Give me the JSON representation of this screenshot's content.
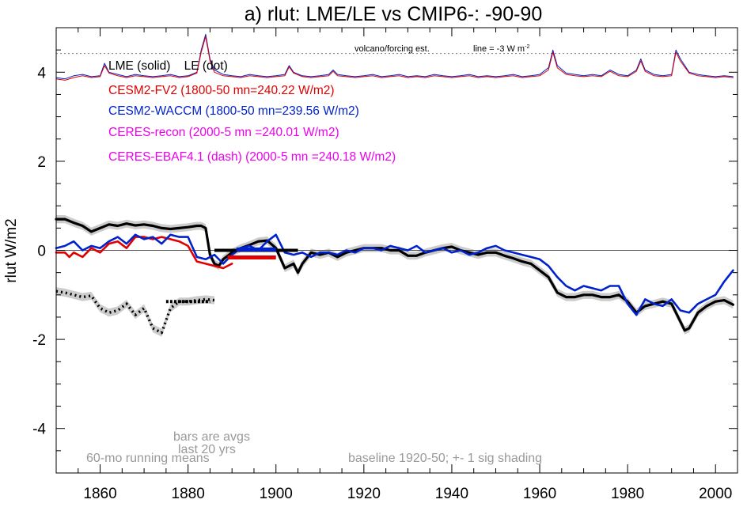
{
  "chart_data": {
    "type": "line",
    "title": "a) rlut: LME/LE vs CMIP6-: -90-90",
    "ylabel": "rlut W/m2",
    "xlabel": "",
    "xlim": [
      1850,
      2005
    ],
    "ylim": [
      -5,
      5
    ],
    "xticks": [
      1860,
      1880,
      1900,
      1920,
      1940,
      1960,
      1980,
      2000
    ],
    "yticks": [
      -4,
      -2,
      0,
      2,
      4
    ],
    "grid": false,
    "zero_line": 0,
    "forcing_reference": 4.42,
    "colors": {
      "lme": "#000000",
      "fv2": "#e00000",
      "waccm": "#0022cc",
      "ceres": "#ee00ee",
      "shading": "#cccccc",
      "note": "#999999"
    },
    "legend": [
      {
        "text": "LME (solid)    LE (dot)",
        "color": "#000000"
      },
      {
        "text": "CESM2-FV2 (1800-50 mn=240.22 W/m2)",
        "color": "#e00000"
      },
      {
        "text": "CESM2-WACCM (1800-50 mn=239.56 W/m2)",
        "color": "#0022cc"
      },
      {
        "text": "CERES-recon (2000-5 mn =240.01 W/m2)",
        "color": "#ee00ee"
      },
      {
        "text": "CERES-EBAF4.1 (dash) (2000-5 mn =240.18 W/m2)",
        "color": "#ee00ee"
      }
    ],
    "annotations": {
      "volcano": "volcano/forcing est.",
      "line_note": "line = -3 W m",
      "line_note_sup": "-2",
      "bars_note_1": "bars are avgs",
      "bars_note_2": "last 20 yrs",
      "running_means": "60-mo running means",
      "baseline": "baseline 1920-50; +- 1 sig shading"
    },
    "series": [
      {
        "id": "lme",
        "style": "solid",
        "width": 3.2,
        "sigma": 0.09,
        "x": [
          1850,
          1852,
          1854,
          1856,
          1858,
          1860,
          1862,
          1864,
          1866,
          1868,
          1870,
          1872,
          1874,
          1876,
          1878,
          1880,
          1882,
          1883,
          1884,
          1885,
          1886,
          1887,
          1888,
          1890,
          1892,
          1894,
          1896,
          1898,
          1900,
          1902,
          1904,
          1905,
          1906,
          1908,
          1910,
          1912,
          1914,
          1916,
          1918,
          1920,
          1922,
          1924,
          1926,
          1928,
          1930,
          1932,
          1934,
          1936,
          1938,
          1940,
          1942,
          1944,
          1946,
          1948,
          1950,
          1952,
          1954,
          1956,
          1958,
          1960,
          1962,
          1964,
          1966,
          1968,
          1970,
          1972,
          1974,
          1976,
          1978,
          1980,
          1982,
          1984,
          1986,
          1988,
          1990,
          1992,
          1993,
          1994,
          1996,
          1998,
          2000,
          2002,
          2004
        ],
        "y": [
          0.7,
          0.7,
          0.62,
          0.55,
          0.42,
          0.5,
          0.58,
          0.55,
          0.6,
          0.56,
          0.58,
          0.55,
          0.5,
          0.48,
          0.5,
          0.52,
          0.55,
          0.55,
          0.5,
          -0.1,
          -0.3,
          -0.35,
          -0.2,
          -0.05,
          0.05,
          0.12,
          0.2,
          0.22,
          0.05,
          -0.4,
          -0.3,
          -0.5,
          -0.3,
          -0.05,
          -0.1,
          -0.05,
          -0.15,
          -0.05,
          0.0,
          0.05,
          0.05,
          0.05,
          0.0,
          0.0,
          -0.12,
          -0.12,
          -0.05,
          0.0,
          0.05,
          0.08,
          0.0,
          -0.05,
          -0.1,
          -0.05,
          -0.05,
          -0.12,
          -0.18,
          -0.25,
          -0.3,
          -0.45,
          -0.6,
          -0.95,
          -1.05,
          -1.05,
          -1.0,
          -1.0,
          -1.05,
          -1.05,
          -1.0,
          -1.15,
          -1.4,
          -1.25,
          -1.2,
          -1.15,
          -1.2,
          -1.6,
          -1.8,
          -1.75,
          -1.4,
          -1.25,
          -1.15,
          -1.12,
          -1.22
        ]
      },
      {
        "id": "fv2",
        "style": "solid",
        "width": 2.6,
        "x": [
          1850,
          1852,
          1853,
          1854,
          1856,
          1858,
          1860,
          1862,
          1864,
          1866,
          1868,
          1870,
          1872,
          1874,
          1876,
          1878,
          1880,
          1882,
          1884,
          1886,
          1888,
          1890
        ],
        "y": [
          -0.05,
          -0.05,
          -0.15,
          -0.05,
          -0.15,
          0.05,
          -0.05,
          0.15,
          0.2,
          0.05,
          0.3,
          0.3,
          0.25,
          0.3,
          0.25,
          0.2,
          0.1,
          -0.25,
          -0.3,
          -0.35,
          -0.4,
          -0.3
        ]
      },
      {
        "id": "waccm",
        "style": "solid",
        "width": 2.6,
        "x": [
          1850,
          1852,
          1854,
          1856,
          1858,
          1860,
          1862,
          1864,
          1866,
          1868,
          1870,
          1872,
          1874,
          1876,
          1878,
          1880,
          1882,
          1884,
          1886,
          1888,
          1890,
          1892,
          1894,
          1896,
          1898,
          1900,
          1902,
          1904,
          1906,
          1908,
          1910,
          1912,
          1914,
          1916,
          1918,
          1920,
          1922,
          1924,
          1926,
          1928,
          1930,
          1932,
          1934,
          1936,
          1938,
          1940,
          1942,
          1944,
          1946,
          1948,
          1950,
          1952,
          1954,
          1956,
          1958,
          1960,
          1962,
          1964,
          1966,
          1968,
          1970,
          1972,
          1974,
          1976,
          1978,
          1980,
          1982,
          1984,
          1986,
          1988,
          1990,
          1992,
          1994,
          1996,
          1998,
          2000,
          2002,
          2004
        ],
        "y": [
          0.05,
          0.1,
          0.2,
          0.0,
          0.1,
          0.05,
          0.2,
          0.3,
          0.15,
          0.35,
          0.25,
          0.3,
          0.15,
          0.35,
          0.3,
          0.3,
          -0.15,
          -0.2,
          -0.1,
          -0.3,
          -0.1,
          0.05,
          0.1,
          0.0,
          0.2,
          0.35,
          -0.05,
          -0.1,
          -0.05,
          -0.15,
          -0.05,
          -0.05,
          -0.1,
          0.0,
          -0.05,
          0.05,
          0.05,
          0.0,
          0.1,
          0.05,
          0.0,
          0.1,
          -0.05,
          0.0,
          0.05,
          -0.05,
          0.0,
          -0.1,
          -0.05,
          0.05,
          0.1,
          0.0,
          -0.05,
          -0.1,
          -0.15,
          -0.2,
          -0.35,
          -0.6,
          -0.8,
          -0.9,
          -0.8,
          -0.85,
          -0.9,
          -0.8,
          -0.8,
          -1.2,
          -1.45,
          -1.1,
          -1.2,
          -1.25,
          -1.1,
          -1.35,
          -1.4,
          -1.2,
          -1.1,
          -1.0,
          -0.7,
          -0.45
        ]
      },
      {
        "id": "le",
        "style": "dotted",
        "width": 3.4,
        "sigma": 0.09,
        "x": [
          1850,
          1852,
          1854,
          1856,
          1858,
          1860,
          1862,
          1864,
          1866,
          1868,
          1870,
          1872,
          1874,
          1876,
          1878,
          1880,
          1882,
          1884,
          1886
        ],
        "y": [
          -0.92,
          -0.95,
          -1.0,
          -1.05,
          -1.02,
          -1.3,
          -1.4,
          -1.35,
          -1.2,
          -1.45,
          -1.3,
          -1.75,
          -1.85,
          -1.3,
          -1.15,
          -1.15,
          -1.12,
          -1.1,
          -1.12
        ]
      },
      {
        "id": "rlut_top_lme",
        "style": "solid",
        "width": 1.0,
        "x": [
          1850,
          1852,
          1854,
          1856,
          1858,
          1860,
          1861,
          1862,
          1864,
          1866,
          1868,
          1870,
          1872,
          1874,
          1876,
          1878,
          1880,
          1882,
          1883,
          1884,
          1885,
          1886,
          1888,
          1890,
          1892,
          1894,
          1896,
          1898,
          1900,
          1902,
          1903,
          1904,
          1906,
          1908,
          1910,
          1912,
          1913,
          1914,
          1916,
          1918,
          1920,
          1922,
          1924,
          1926,
          1928,
          1930,
          1932,
          1934,
          1936,
          1938,
          1940,
          1942,
          1944,
          1946,
          1948,
          1950,
          1952,
          1954,
          1956,
          1958,
          1960,
          1962,
          1963,
          1964,
          1966,
          1968,
          1970,
          1972,
          1974,
          1976,
          1978,
          1980,
          1982,
          1983,
          1984,
          1986,
          1988,
          1990,
          1991,
          1992,
          1994,
          1996,
          1998,
          2000,
          2002,
          2004
        ],
        "y": [
          3.88,
          3.85,
          3.92,
          3.95,
          3.9,
          3.92,
          4.2,
          4.0,
          3.95,
          3.9,
          3.95,
          3.92,
          3.9,
          3.92,
          3.95,
          3.9,
          3.92,
          4.0,
          4.5,
          4.85,
          4.3,
          4.05,
          3.95,
          3.92,
          3.9,
          3.95,
          3.92,
          3.9,
          3.92,
          3.95,
          4.15,
          4.0,
          3.92,
          3.9,
          3.92,
          3.95,
          4.05,
          3.95,
          3.92,
          3.9,
          3.92,
          3.95,
          3.9,
          3.92,
          3.95,
          3.9,
          3.92,
          3.9,
          3.95,
          3.92,
          3.9,
          3.92,
          3.95,
          3.9,
          3.92,
          3.9,
          3.92,
          3.95,
          3.9,
          3.92,
          3.95,
          4.1,
          4.5,
          4.15,
          3.98,
          3.95,
          3.92,
          3.95,
          3.92,
          4.05,
          3.95,
          3.92,
          4.05,
          4.3,
          4.05,
          3.95,
          3.92,
          3.95,
          4.5,
          4.3,
          4.0,
          3.95,
          3.92,
          3.9,
          3.92,
          3.9
        ]
      },
      {
        "id": "rlut_top_fv2",
        "style": "solid",
        "width": 1.0,
        "x": [
          1850,
          1852,
          1854,
          1856,
          1858,
          1860,
          1861,
          1862,
          1864,
          1866,
          1868,
          1870,
          1872,
          1874,
          1876,
          1878,
          1880,
          1882,
          1883,
          1884,
          1885,
          1886,
          1888,
          1890,
          1892,
          1894,
          1896,
          1898,
          1900,
          1902,
          1903,
          1904,
          1906,
          1908,
          1910,
          1912,
          1913,
          1914,
          1916,
          1918,
          1920,
          1922,
          1924,
          1926,
          1928,
          1930,
          1932,
          1934,
          1936,
          1938,
          1940,
          1942,
          1944,
          1946,
          1948,
          1950,
          1952,
          1954,
          1956,
          1958,
          1960,
          1962,
          1963,
          1964,
          1966,
          1968,
          1970,
          1972,
          1974,
          1976,
          1978,
          1980,
          1982,
          1983,
          1984,
          1986,
          1988,
          1990,
          1991,
          1992,
          1994,
          1996,
          1998,
          2000,
          2002,
          2004
        ],
        "y": [
          3.85,
          3.82,
          3.88,
          3.92,
          3.88,
          3.9,
          4.15,
          3.98,
          3.92,
          3.88,
          3.92,
          3.9,
          3.88,
          3.9,
          3.92,
          3.88,
          3.9,
          3.98,
          4.45,
          4.8,
          4.25,
          4.0,
          3.92,
          3.9,
          3.88,
          3.92,
          3.9,
          3.88,
          3.9,
          3.92,
          4.12,
          3.98,
          3.9,
          3.88,
          3.9,
          3.92,
          4.02,
          3.92,
          3.9,
          3.88,
          3.9,
          3.92,
          3.88,
          3.9,
          3.92,
          3.88,
          3.9,
          3.88,
          3.92,
          3.9,
          3.88,
          3.9,
          3.92,
          3.88,
          3.9,
          3.88,
          3.9,
          3.92,
          3.88,
          3.9,
          3.92,
          4.05,
          4.45,
          4.1,
          3.95,
          3.92,
          3.9,
          3.92,
          3.9,
          4.02,
          3.92,
          3.9,
          4.02,
          4.25,
          4.02,
          3.92,
          3.9,
          3.92,
          4.45,
          4.25,
          3.98,
          3.92,
          3.9,
          3.88,
          3.9,
          3.88
        ]
      }
    ],
    "avg_bars": [
      {
        "series": "lme",
        "x": [
          1886,
          1905
        ],
        "y": 0.0,
        "width": 4
      },
      {
        "series": "waccm",
        "x": [
          1891,
          1900
        ],
        "y": 0.02,
        "width": 5
      },
      {
        "series": "fv2",
        "x": [
          1889,
          1900
        ],
        "y": -0.16,
        "width": 5
      },
      {
        "series": "le",
        "x": [
          1875,
          1885
        ],
        "y": -1.15,
        "width": 4
      }
    ]
  }
}
